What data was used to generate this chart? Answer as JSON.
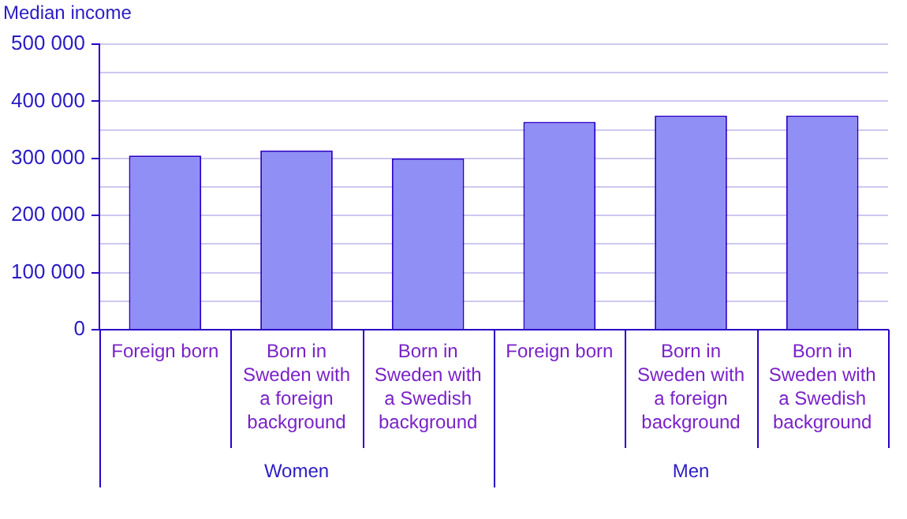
{
  "chart_data": {
    "type": "bar",
    "ylabel": "Median income",
    "categories": [
      "Foreign born",
      "Born in Sweden with a foreign background",
      "Born in Sweden with a Swedish background",
      "Foreign born",
      "Born in Sweden with a foreign background",
      "Born in Sweden with a Swedish background"
    ],
    "values": [
      305000,
      314000,
      300000,
      364000,
      375000,
      375000
    ],
    "color": "#8f8ff5",
    "ylim": [
      0,
      500000
    ],
    "yticks": [
      0,
      {
        "value": 50000,
        "label": null
      },
      {
        "value": 100000,
        "label": "100 000"
      },
      {
        "value": 150000,
        "label": null
      },
      {
        "value": 200000,
        "label": "200 000"
      },
      {
        "value": 250000,
        "label": null
      },
      {
        "value": 300000,
        "label": "300 000"
      },
      {
        "value": 350000,
        "label": null
      },
      {
        "value": 400000,
        "label": "400 000"
      },
      {
        "value": 450000,
        "label": null
      },
      {
        "value": 500000,
        "label": "500 000"
      }
    ],
    "grid": "y",
    "legend": false,
    "annotations": [
      "Women",
      "Men"
    ]
  }
}
